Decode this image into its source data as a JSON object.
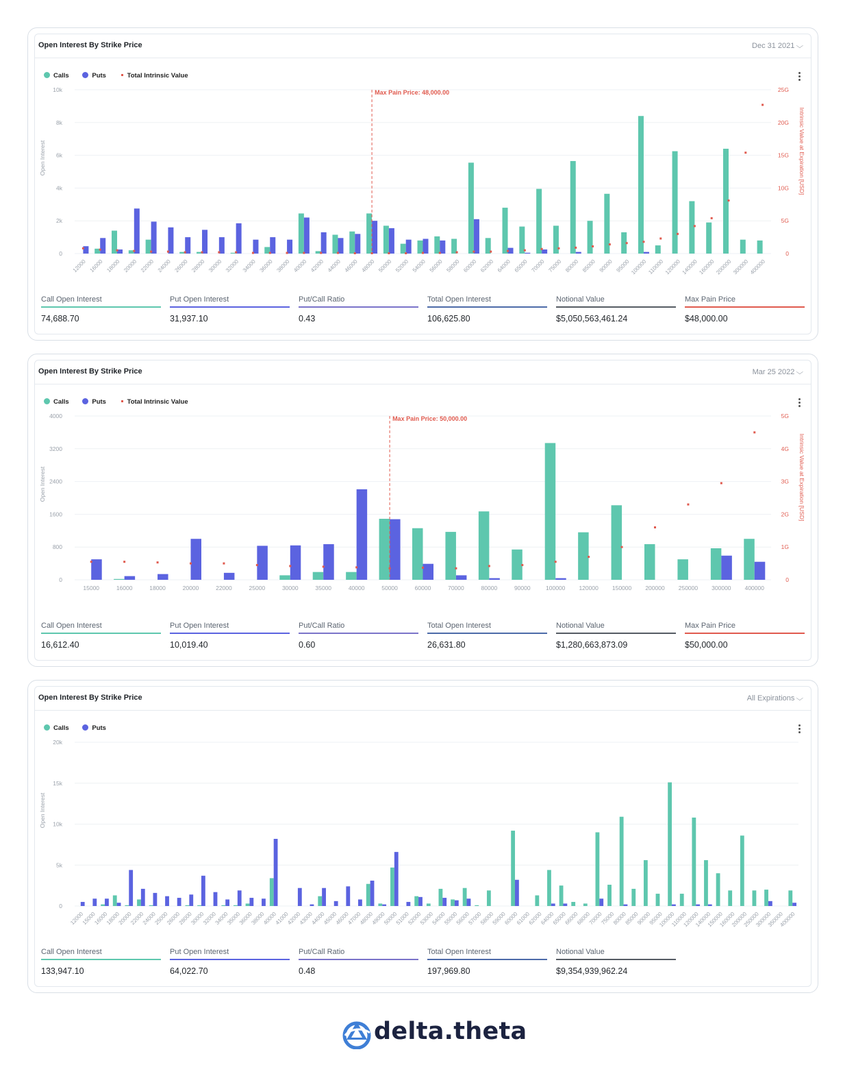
{
  "colors": {
    "calls": "#5ec7ae",
    "puts": "#5b63e0",
    "intrinsic": "#e05a4e",
    "maxpain": "#e05a4e",
    "grid": "#eef1f4",
    "axis": "#9aa1aa"
  },
  "charts": [
    {
      "title": "Open Interest By Strike Price",
      "dropdown": "Dec 31 2021",
      "legend": {
        "calls": "Calls",
        "puts": "Puts",
        "intrinsic": "Total Intrinsic Value"
      },
      "ylabel": "Open Interest",
      "y2label": "Intrinsic Value at Expiration [USD]",
      "maxpain_label": "Max Pain Price: 48,000.00",
      "stats": [
        {
          "label": "Call Open Interest",
          "value": "74,688.70"
        },
        {
          "label": "Put Open Interest",
          "value": "31,937.10"
        },
        {
          "label": "Put/Call Ratio",
          "value": "0.43"
        },
        {
          "label": "Total Open Interest",
          "value": "106,625.80"
        },
        {
          "label": "Notional Value",
          "value": "$5,050,563,461.24"
        },
        {
          "label": "Max Pain Price",
          "value": "$48,000.00"
        }
      ]
    },
    {
      "title": "Open Interest By Strike Price",
      "dropdown": "Mar 25 2022",
      "legend": {
        "calls": "Calls",
        "puts": "Puts",
        "intrinsic": "Total Intrinsic Value"
      },
      "ylabel": "Open Interest",
      "y2label": "Intrinsic Value at Expiration [USD]",
      "maxpain_label": "Max Pain Price: 50,000.00",
      "stats": [
        {
          "label": "Call Open Interest",
          "value": "16,612.40"
        },
        {
          "label": "Put Open Interest",
          "value": "10,019.40"
        },
        {
          "label": "Put/Call Ratio",
          "value": "0.60"
        },
        {
          "label": "Total Open Interest",
          "value": "26,631.80"
        },
        {
          "label": "Notional Value",
          "value": "$1,280,663,873.09"
        },
        {
          "label": "Max Pain Price",
          "value": "$50,000.00"
        }
      ]
    },
    {
      "title": "Open Interest By Strike Price",
      "dropdown": "All Expirations",
      "legend": {
        "calls": "Calls",
        "puts": "Puts"
      },
      "ylabel": "Open Interest",
      "stats": [
        {
          "label": "Call Open Interest",
          "value": "133,947.10"
        },
        {
          "label": "Put Open Interest",
          "value": "64,022.70"
        },
        {
          "label": "Put/Call Ratio",
          "value": "0.48"
        },
        {
          "label": "Total Open Interest",
          "value": "197,969.80"
        },
        {
          "label": "Notional Value",
          "value": "$9,354,939,962.24"
        }
      ]
    }
  ],
  "chart_data": [
    {
      "type": "bar",
      "categories": [
        "12000",
        "16000",
        "18000",
        "20000",
        "22000",
        "24000",
        "26000",
        "28000",
        "30000",
        "32000",
        "34000",
        "36000",
        "38000",
        "40000",
        "42000",
        "44000",
        "46000",
        "48000",
        "50000",
        "52000",
        "54000",
        "56000",
        "58000",
        "60000",
        "62000",
        "64000",
        "65000",
        "70000",
        "75000",
        "80000",
        "85000",
        "90000",
        "95000",
        "100000",
        "110000",
        "120000",
        "140000",
        "160000",
        "200000",
        "300000",
        "400000"
      ],
      "series": [
        {
          "name": "Calls",
          "values": [
            0,
            300,
            1400,
            200,
            850,
            0,
            100,
            100,
            0,
            50,
            0,
            400,
            0,
            2450,
            150,
            1150,
            1350,
            2450,
            1700,
            600,
            800,
            1050,
            900,
            5550,
            950,
            2800,
            1650,
            3950,
            1700,
            5650,
            2000,
            3650,
            1300,
            8400,
            500,
            6250,
            3200,
            1900,
            6400,
            850,
            800
          ]
        },
        {
          "name": "Puts",
          "values": [
            450,
            950,
            250,
            2750,
            1950,
            1600,
            1000,
            1450,
            1000,
            1850,
            850,
            1000,
            850,
            2200,
            1300,
            950,
            1200,
            2000,
            1550,
            850,
            900,
            800,
            0,
            2100,
            0,
            350,
            50,
            250,
            0,
            100,
            0,
            0,
            0,
            100,
            0,
            0,
            0,
            0,
            0,
            0,
            0
          ]
        },
        {
          "name": "Total Intrinsic Value",
          "axis": "right",
          "values": [
            0.8,
            0.6,
            0.5,
            0.4,
            0.3,
            0.3,
            0.2,
            0.2,
            0.2,
            0.2,
            0.1,
            0.1,
            0.1,
            0.1,
            0.1,
            0.1,
            0.05,
            0.05,
            0.05,
            0.05,
            0.1,
            0.1,
            0.2,
            0.3,
            0.3,
            0.4,
            0.5,
            0.7,
            0.8,
            0.9,
            1.1,
            1.4,
            1.6,
            1.8,
            2.3,
            3.0,
            4.2,
            5.4,
            8.1,
            15.4,
            22.7
          ]
        }
      ],
      "ylim": [
        0,
        10000
      ],
      "yticks": [
        0,
        2000,
        4000,
        6000,
        8000,
        10000
      ],
      "yticklabels": [
        "0",
        "2k",
        "4k",
        "6k",
        "8k",
        "10k"
      ],
      "y2lim": [
        0,
        25
      ],
      "y2ticklabels": [
        "0",
        "5G",
        "10G",
        "15G",
        "20G",
        "25G"
      ],
      "maxpain": "48000",
      "grid": true,
      "legend": "top-left"
    },
    {
      "type": "bar",
      "categories": [
        "15000",
        "16000",
        "18000",
        "20000",
        "22000",
        "25000",
        "30000",
        "35000",
        "40000",
        "50000",
        "60000",
        "70000",
        "80000",
        "90000",
        "100000",
        "120000",
        "150000",
        "200000",
        "250000",
        "300000",
        "400000"
      ],
      "series": [
        {
          "name": "Calls",
          "values": [
            0,
            20,
            0,
            0,
            0,
            0,
            110,
            190,
            190,
            1490,
            1260,
            1170,
            1670,
            740,
            3340,
            1160,
            1820,
            870,
            500,
            770,
            1000
          ]
        },
        {
          "name": "Puts",
          "values": [
            500,
            90,
            140,
            1000,
            170,
            830,
            840,
            870,
            2210,
            1480,
            390,
            110,
            40,
            0,
            40,
            0,
            0,
            0,
            0,
            590,
            440
          ]
        },
        {
          "name": "Total Intrinsic Value",
          "axis": "right",
          "values": [
            0.55,
            0.55,
            0.53,
            0.5,
            0.5,
            0.45,
            0.42,
            0.4,
            0.38,
            0.35,
            0.37,
            0.35,
            0.42,
            0.45,
            0.55,
            0.7,
            1.0,
            1.6,
            2.3,
            2.95,
            4.5
          ]
        }
      ],
      "ylim": [
        0,
        4000
      ],
      "yticklabels": [
        "0",
        "800",
        "1600",
        "2400",
        "3200",
        "4000"
      ],
      "y2lim": [
        0,
        5
      ],
      "y2ticklabels": [
        "0",
        "1G",
        "2G",
        "3G",
        "4G",
        "5G"
      ],
      "maxpain": "50000",
      "grid": true,
      "legend": "top-left"
    },
    {
      "type": "bar",
      "categories": [
        "12000",
        "15000",
        "16000",
        "18000",
        "20000",
        "22000",
        "24000",
        "25000",
        "26000",
        "28000",
        "30000",
        "32000",
        "34000",
        "35000",
        "36000",
        "38000",
        "40000",
        "41000",
        "42000",
        "43000",
        "44000",
        "45000",
        "46000",
        "47000",
        "48000",
        "49000",
        "50000",
        "51000",
        "52000",
        "53000",
        "54000",
        "55000",
        "56000",
        "57000",
        "58000",
        "59000",
        "60000",
        "61000",
        "62000",
        "64000",
        "65000",
        "66000",
        "68000",
        "70000",
        "75000",
        "80000",
        "85000",
        "90000",
        "95000",
        "100000",
        "110000",
        "120000",
        "140000",
        "150000",
        "160000",
        "200000",
        "250000",
        "300000",
        "350000",
        "400000"
      ],
      "series": [
        {
          "name": "Calls",
          "values": [
            0,
            0,
            200,
            1300,
            100,
            800,
            100,
            0,
            0,
            100,
            100,
            0,
            100,
            100,
            300,
            0,
            3400,
            0,
            0,
            0,
            1200,
            0,
            0,
            0,
            2700,
            300,
            4700,
            0,
            1200,
            300,
            2100,
            800,
            2200,
            100,
            1900,
            0,
            9200,
            0,
            1300,
            4400,
            2500,
            500,
            300,
            9000,
            2600,
            10900,
            2100,
            5600,
            1500,
            15100,
            1500,
            10800,
            5600,
            4000,
            1900,
            8600,
            1900,
            2000,
            0,
            1900
          ]
        },
        {
          "name": "Puts",
          "values": [
            500,
            900,
            900,
            400,
            4400,
            2100,
            1600,
            1200,
            1000,
            1400,
            3700,
            1700,
            800,
            1900,
            1000,
            900,
            8200,
            0,
            2200,
            200,
            2200,
            600,
            2400,
            800,
            3100,
            200,
            6600,
            500,
            1100,
            0,
            1000,
            700,
            900,
            0,
            0,
            0,
            3200,
            0,
            0,
            300,
            300,
            0,
            0,
            900,
            0,
            200,
            0,
            0,
            0,
            200,
            0,
            200,
            200,
            0,
            0,
            0,
            0,
            600,
            0,
            400
          ]
        }
      ],
      "ylim": [
        0,
        20000
      ],
      "yticklabels": [
        "0",
        "5k",
        "10k",
        "15k",
        "20k"
      ],
      "grid": true,
      "legend": "top-left"
    }
  ],
  "logo": {
    "text": "delta.theta",
    "icon": "delta-theta-logo-icon"
  }
}
